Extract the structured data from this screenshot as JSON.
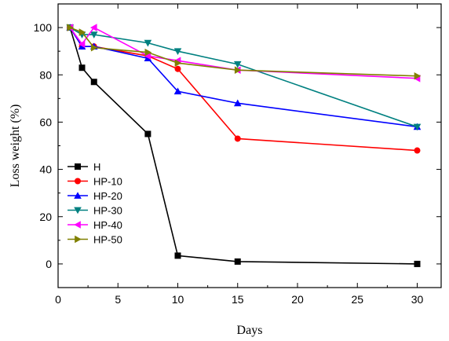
{
  "chart_data": {
    "type": "line",
    "xlabel": "Days",
    "ylabel": "Loss weight (%)",
    "xlim": [
      0,
      32
    ],
    "ylim": [
      -10,
      110
    ],
    "xticks": [
      0,
      5,
      10,
      15,
      20,
      25,
      30
    ],
    "yticks": [
      0,
      20,
      40,
      60,
      80,
      100
    ],
    "grid": false,
    "legend_position": "bottom-left",
    "series": [
      {
        "name": "H",
        "color": "#000000",
        "marker": "square",
        "x": [
          1,
          2,
          3,
          7.5,
          10,
          15,
          30
        ],
        "y": [
          100,
          83,
          77,
          55,
          3.5,
          1,
          0
        ]
      },
      {
        "name": "HP-10",
        "color": "#ff0000",
        "marker": "circle",
        "x": [
          1,
          2,
          3,
          7.5,
          10,
          15,
          30
        ],
        "y": [
          100,
          92,
          92,
          88,
          82.5,
          53,
          48
        ]
      },
      {
        "name": "HP-20",
        "color": "#0000ff",
        "marker": "triangle-up",
        "x": [
          1,
          2,
          3,
          7.5,
          10,
          15,
          30
        ],
        "y": [
          100,
          92,
          92,
          87,
          73,
          68,
          58
        ]
      },
      {
        "name": "HP-30",
        "color": "#008080",
        "marker": "triangle-down",
        "x": [
          1,
          2,
          3,
          7.5,
          10,
          15,
          30
        ],
        "y": [
          100,
          97,
          97,
          93.5,
          90,
          84.5,
          58
        ]
      },
      {
        "name": "HP-40",
        "color": "#ff00ff",
        "marker": "triangle-left",
        "x": [
          1,
          2,
          3,
          7.5,
          10,
          15,
          30
        ],
        "y": [
          100,
          93,
          100,
          88,
          86,
          82,
          78.5
        ]
      },
      {
        "name": "HP-50",
        "color": "#808000",
        "marker": "triangle-right",
        "x": [
          1,
          2,
          3,
          7.5,
          10,
          15,
          30
        ],
        "y": [
          100,
          98,
          91.5,
          89.5,
          85,
          82,
          79.5
        ]
      }
    ]
  }
}
